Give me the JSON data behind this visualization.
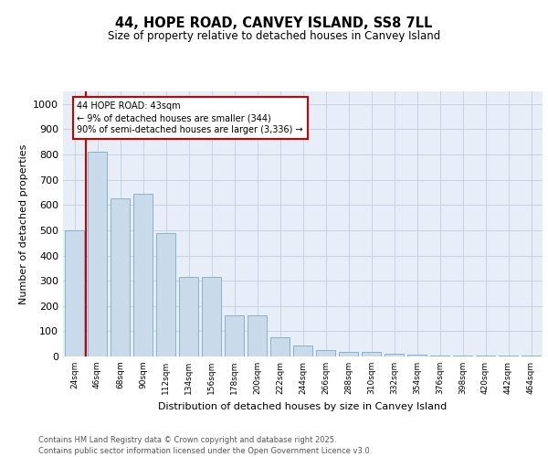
{
  "title": "44, HOPE ROAD, CANVEY ISLAND, SS8 7LL",
  "subtitle": "Size of property relative to detached houses in Canvey Island",
  "xlabel": "Distribution of detached houses by size in Canvey Island",
  "ylabel": "Number of detached properties",
  "categories": [
    "24sqm",
    "46sqm",
    "68sqm",
    "90sqm",
    "112sqm",
    "134sqm",
    "156sqm",
    "178sqm",
    "200sqm",
    "222sqm",
    "244sqm",
    "266sqm",
    "288sqm",
    "310sqm",
    "332sqm",
    "354sqm",
    "376sqm",
    "398sqm",
    "420sqm",
    "442sqm",
    "464sqm"
  ],
  "values": [
    500,
    810,
    625,
    645,
    490,
    315,
    315,
    162,
    162,
    75,
    45,
    25,
    18,
    18,
    10,
    7,
    5,
    5,
    3,
    5,
    2
  ],
  "bar_color": "#c9daea",
  "bar_edge_color": "#7aaac8",
  "ylim_max": 1050,
  "yticks": [
    0,
    100,
    200,
    300,
    400,
    500,
    600,
    700,
    800,
    900,
    1000
  ],
  "grid_color": "#c8d4e4",
  "bg_color": "#e8eef8",
  "red_color": "#cc0000",
  "ann_text": "44 HOPE ROAD: 43sqm\n← 9% of detached houses are smaller (344)\n90% of semi-detached houses are larger (3,336) →",
  "footer_line1": "Contains HM Land Registry data © Crown copyright and database right 2025.",
  "footer_line2": "Contains public sector information licensed under the Open Government Licence v3.0."
}
